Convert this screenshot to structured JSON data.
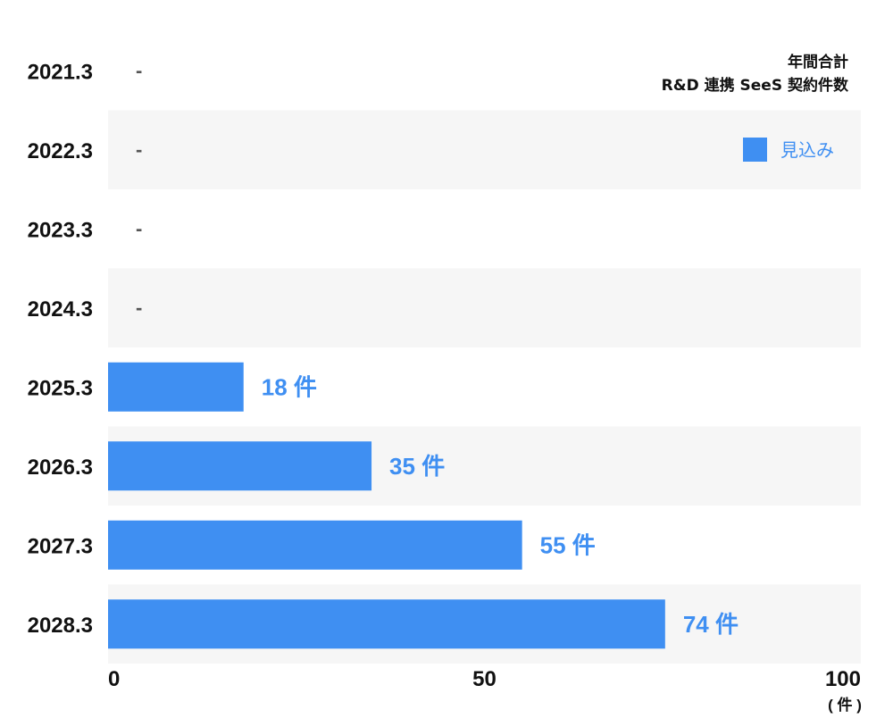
{
  "chart_data": {
    "type": "bar",
    "orientation": "horizontal",
    "title": "年間合計",
    "subtitle": "R&D 連携 SeeS 契約件数",
    "categories": [
      "2021.3",
      "2022.3",
      "2023.3",
      "2024.3",
      "2025.3",
      "2026.3",
      "2027.3",
      "2028.3"
    ],
    "series": [
      {
        "name": "見込み",
        "values": [
          null,
          null,
          null,
          null,
          18,
          35,
          55,
          74
        ],
        "labels": [
          "-",
          "-",
          "-",
          "-",
          "18 件",
          "35 件",
          "55 件",
          "74 件"
        ]
      }
    ],
    "xlim": [
      0,
      100
    ],
    "xticks": [
      "0",
      "50",
      "100"
    ],
    "xunit": "( 件 )",
    "legend": "top-right",
    "grid": false,
    "colors": {
      "bar": "#3f8ff2",
      "label": "#3f8ff2",
      "band": "#f6f6f6"
    }
  }
}
